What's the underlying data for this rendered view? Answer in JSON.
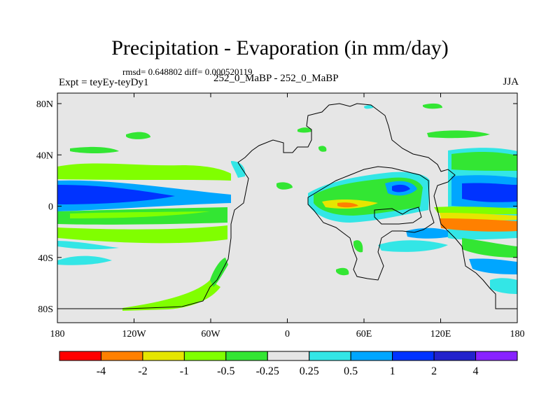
{
  "figure": {
    "title": "Precipitation - Evaporation (in mm/day)",
    "stats": "rmsd= 0.648802 diff= 0.000520119",
    "experiment": "Expt = teyEy-teyDy1",
    "comparison": "252_0_MaBP - 252_0_MaBP",
    "season": "JJA"
  },
  "axes": {
    "x_ticks": [
      "180",
      "120W",
      "60W",
      "0",
      "60E",
      "120E",
      "180"
    ],
    "y_ticks": [
      "80N",
      "40N",
      "0",
      "40S",
      "80S"
    ]
  },
  "colorbar": {
    "labels": [
      "-4",
      "-2",
      "-1",
      "-0.5",
      "-0.25",
      "0.25",
      "0.5",
      "1",
      "2",
      "4"
    ],
    "colors": [
      "#ff0000",
      "#ff8000",
      "#e6e600",
      "#80ff00",
      "#33e633",
      "#e6e6e6",
      "#33e6e6",
      "#00a6ff",
      "#0033ff",
      "#2222cc",
      "#8822ff"
    ]
  },
  "map_colors": {
    "background": "#e6e6e6",
    "coastline": "#000000"
  }
}
